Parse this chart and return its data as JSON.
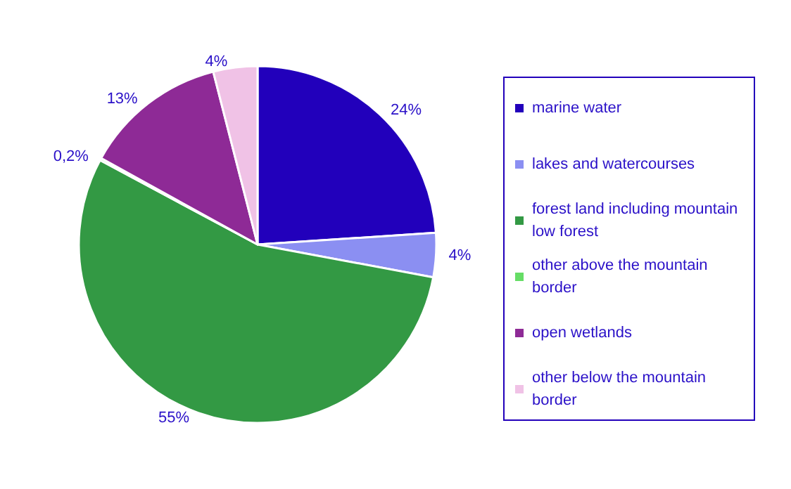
{
  "chart_data": {
    "type": "pie",
    "categories": [
      "marine water",
      "lakes and watercourses",
      "forest land including mountain low forest",
      "other above the mountain border",
      "open wetlands",
      "other below the mountain border"
    ],
    "values": [
      24,
      4,
      55,
      0.2,
      13,
      4
    ],
    "value_labels": [
      "24%",
      "4%",
      "55%",
      "0,2%",
      "13%",
      "4%"
    ],
    "colors": [
      "#2200bb",
      "#8b8ff2",
      "#339944",
      "#66dd66",
      "#8e2a96",
      "#f0c2e6"
    ],
    "legend": "right"
  }
}
